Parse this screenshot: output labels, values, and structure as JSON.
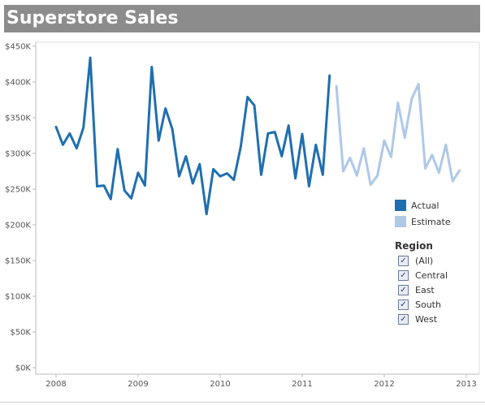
{
  "title": "Superstore Sales",
  "chart_data": {
    "type": "line",
    "title": "Superstore Sales",
    "xlabel": "",
    "ylabel": "",
    "xlim": [
      2008,
      2013
    ],
    "ylim": [
      0,
      450000
    ],
    "x_ticks": [
      "2008",
      "2009",
      "2010",
      "2011",
      "2012",
      "2013"
    ],
    "y_ticks": [
      "$0K",
      "$50K",
      "$100K",
      "$150K",
      "$200K",
      "$250K",
      "$300K",
      "$350K",
      "$400K",
      "$450K"
    ],
    "y_tick_values": [
      0,
      50000,
      100000,
      150000,
      200000,
      250000,
      300000,
      350000,
      400000,
      450000
    ],
    "series": [
      {
        "name": "Actual",
        "color": "#1f6fb0",
        "x": [
          "2008-01",
          "2008-02",
          "2008-03",
          "2008-04",
          "2008-05",
          "2008-06",
          "2008-07",
          "2008-08",
          "2008-09",
          "2008-10",
          "2008-11",
          "2008-12",
          "2009-01",
          "2009-02",
          "2009-03",
          "2009-04",
          "2009-05",
          "2009-06",
          "2009-07",
          "2009-08",
          "2009-09",
          "2009-10",
          "2009-11",
          "2009-12",
          "2010-01",
          "2010-02",
          "2010-03",
          "2010-04",
          "2010-05",
          "2010-06",
          "2010-07",
          "2010-08",
          "2010-09",
          "2010-10",
          "2010-11",
          "2010-12",
          "2011-01",
          "2011-02",
          "2011-03",
          "2011-04",
          "2011-05"
        ],
        "values": [
          337000,
          312000,
          328000,
          307000,
          336000,
          434000,
          254000,
          255000,
          236000,
          306000,
          248000,
          237000,
          273000,
          255000,
          421000,
          318000,
          363000,
          334000,
          268000,
          296000,
          258000,
          285000,
          215000,
          278000,
          268000,
          272000,
          263000,
          309000,
          379000,
          367000,
          270000,
          328000,
          330000,
          296000,
          339000,
          265000,
          327000,
          254000,
          312000,
          270000,
          409000
        ]
      },
      {
        "name": "Estimate",
        "color": "#aec8e8",
        "x": [
          "2011-06",
          "2011-07",
          "2011-08",
          "2011-09",
          "2011-10",
          "2011-11",
          "2011-12",
          "2012-01",
          "2012-02",
          "2012-03",
          "2012-04",
          "2012-05",
          "2012-06",
          "2012-07",
          "2012-08",
          "2012-09",
          "2012-10",
          "2012-11",
          "2012-12"
        ],
        "values": [
          394000,
          275000,
          294000,
          269000,
          307000,
          256000,
          269000,
          318000,
          295000,
          371000,
          322000,
          376000,
          397000,
          279000,
          298000,
          273000,
          312000,
          261000,
          276000
        ]
      }
    ],
    "grid": false,
    "legend_position": "right"
  },
  "legend": {
    "items": [
      {
        "label": "Actual",
        "color": "#1f6fb0"
      },
      {
        "label": "Estimate",
        "color": "#aec8e8"
      }
    ]
  },
  "filter": {
    "title": "Region",
    "check_glyph": "✓",
    "options": [
      {
        "label": "(All)",
        "checked": true
      },
      {
        "label": "Central",
        "checked": true
      },
      {
        "label": "East",
        "checked": true
      },
      {
        "label": "South",
        "checked": true
      },
      {
        "label": "West",
        "checked": true
      }
    ]
  }
}
